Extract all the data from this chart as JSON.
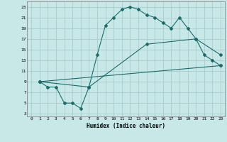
{
  "xlabel": "Humidex (Indice chaleur)",
  "xlim": [
    -0.5,
    23.5
  ],
  "ylim": [
    2.5,
    24
  ],
  "xticks": [
    0,
    1,
    2,
    3,
    4,
    5,
    6,
    7,
    8,
    9,
    10,
    11,
    12,
    13,
    14,
    15,
    16,
    17,
    18,
    19,
    20,
    21,
    22,
    23
  ],
  "yticks": [
    3,
    5,
    7,
    9,
    11,
    13,
    15,
    17,
    19,
    21,
    23
  ],
  "bg_color": "#c8e8e8",
  "grid_color": "#a8cccc",
  "line_color": "#1a6b6b",
  "line1_x": [
    1,
    2,
    3,
    4,
    5,
    6,
    7,
    8,
    9,
    10,
    11,
    12,
    13,
    14,
    15,
    16,
    17,
    18,
    19,
    20,
    21,
    22,
    23
  ],
  "line1_y": [
    9,
    8,
    8,
    5,
    5,
    4,
    8,
    14,
    19.5,
    21,
    22.5,
    23,
    22.5,
    21.5,
    21,
    20,
    19,
    21,
    19,
    17,
    14,
    13,
    12
  ],
  "line2_x": [
    1,
    23
  ],
  "line2_y": [
    9,
    12
  ],
  "line3_x": [
    1,
    7,
    14,
    20,
    23
  ],
  "line3_y": [
    9,
    8,
    16,
    17,
    14
  ]
}
